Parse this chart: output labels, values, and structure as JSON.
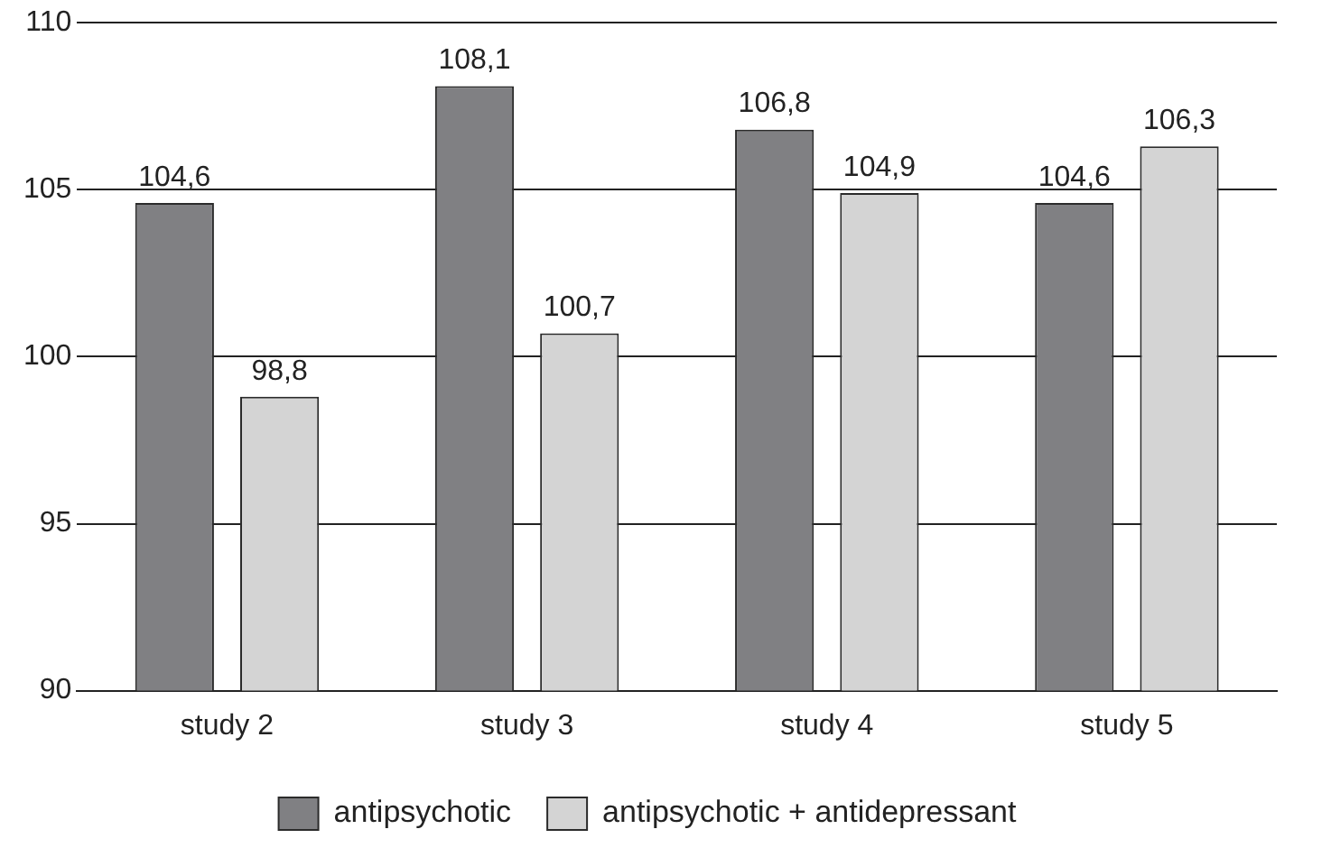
{
  "chart_data": {
    "type": "bar",
    "categories": [
      "study 2",
      "study 3",
      "study 4",
      "study 5"
    ],
    "series": [
      {
        "name": "antipsychotic",
        "color": "#808083",
        "values": [
          104.6,
          108.1,
          106.8,
          104.6
        ],
        "value_labels": [
          "104,6",
          "108,1",
          "106,8",
          "104,6"
        ]
      },
      {
        "name": "antipsychotic + antidepressant",
        "color": "#d4d4d4",
        "values": [
          98.8,
          100.7,
          104.9,
          106.3
        ],
        "value_labels": [
          "98,8",
          "100,7",
          "104,9",
          "106,3"
        ]
      }
    ],
    "ylim": [
      90,
      110
    ],
    "yticks": [
      90,
      95,
      100,
      105,
      110
    ],
    "grid": "y",
    "legend": "bottom"
  }
}
